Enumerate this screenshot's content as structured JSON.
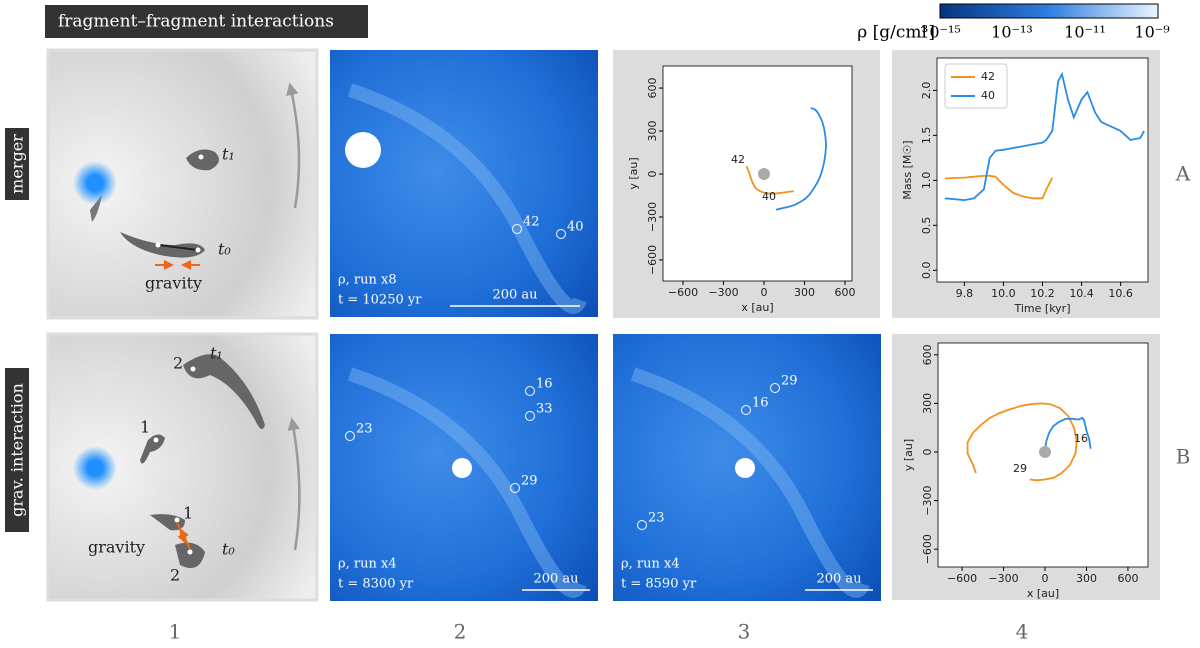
{
  "title": "fragment–fragment interactions",
  "colorbar": {
    "label": "ρ [g/cm³]",
    "ticks": [
      "10⁻¹⁵",
      "10⁻¹³",
      "10⁻¹¹",
      "10⁻⁹"
    ]
  },
  "rows": [
    "merger",
    "grav. interaction"
  ],
  "row_letters": [
    "A",
    "B"
  ],
  "columns": [
    "1",
    "2",
    "3",
    "4"
  ],
  "schematic": [
    {
      "t1": "t₁",
      "t0": "t₀",
      "force": "gravity"
    },
    {
      "t1": "t₁",
      "t0": "t₀",
      "force": "gravity",
      "labels": [
        "2",
        "1",
        "1",
        "2"
      ]
    }
  ],
  "simulations": [
    {
      "caption": "ρ, run x8",
      "time": "t = 10250 yr",
      "scale": "200 au",
      "fragments": [
        "42",
        "40"
      ]
    },
    {
      "caption": "ρ, run x4",
      "time": "t = 8300 yr",
      "scale": "200 au",
      "fragments": [
        "16",
        "33",
        "23",
        "29"
      ]
    },
    {
      "caption": "ρ, run x4",
      "time": "t = 8590 yr",
      "scale": "200 au",
      "fragments": [
        "29",
        "16",
        "23"
      ]
    }
  ],
  "chart_data": [
    {
      "type": "line",
      "xlabel": "x [au]",
      "ylabel": "y [au]",
      "xlim": [
        -748,
        652
      ],
      "ylim": [
        -747,
        754
      ],
      "xticks": [
        {
          "value": -600,
          "label": "−600"
        },
        {
          "value": -300,
          "label": "−300"
        },
        0,
        300,
        600
      ],
      "yticks": [
        {
          "value": -600,
          "label": "−600"
        },
        {
          "value": -300,
          "label": "−300"
        },
        0,
        300,
        600
      ],
      "star": {
        "x": 0,
        "y": 0,
        "color": "#aaaaaa"
      },
      "series": [
        {
          "name": "42",
          "color": "#f5901e",
          "x": [
            -130,
            -115,
            -100,
            -85,
            -65,
            -40,
            -10,
            20,
            60,
            100,
            140,
            180,
            220
          ],
          "values": [
            55,
            20,
            -20,
            -60,
            -95,
            -115,
            -128,
            -135,
            -138,
            -135,
            -130,
            -125,
            -120
          ]
        },
        {
          "name": "40",
          "color": "#2a8be8",
          "x": [
            90,
            130,
            180,
            230,
            270,
            310,
            340,
            370,
            395,
            415,
            430,
            445,
            455,
            460,
            455,
            445,
            430,
            410,
            390,
            370,
            345
          ],
          "values": [
            -250,
            -240,
            -230,
            -215,
            -195,
            -170,
            -140,
            -100,
            -60,
            -20,
            20,
            80,
            140,
            200,
            260,
            320,
            370,
            410,
            440,
            455,
            460
          ]
        }
      ]
    },
    {
      "type": "line",
      "xlabel": "Time [kyr]",
      "ylabel": "Mass [M☉]",
      "xlim": [
        9.66,
        10.74
      ],
      "ylim": [
        -0.13,
        2.36
      ],
      "xticks": [
        9.8,
        {
          "value": 10,
          "label": "10.0"
        },
        10.2,
        10.4,
        10.6
      ],
      "yticks": [
        {
          "value": 0,
          "label": "0.0"
        },
        0.5,
        {
          "value": 1,
          "label": "1.0"
        },
        1.5,
        {
          "value": 2,
          "label": "2.0"
        }
      ],
      "legend": "upper left",
      "x": [
        9.7,
        9.8,
        9.85,
        9.9,
        9.93,
        9.96,
        10.0,
        10.05,
        10.1,
        10.15,
        10.2,
        10.22,
        10.25,
        10.28,
        10.3,
        10.33,
        10.36,
        10.4,
        10.43,
        10.47,
        10.5,
        10.55,
        10.6,
        10.65,
        10.7,
        10.72
      ],
      "series": [
        {
          "name": "42",
          "color": "#f5901e",
          "values": [
            1.02,
            1.03,
            1.04,
            1.05,
            1.05,
            1.04,
            0.95,
            0.86,
            0.82,
            0.8,
            0.8,
            0.9,
            1.03,
            null,
            null,
            null,
            null,
            null,
            null,
            null,
            null,
            null,
            null,
            null,
            null,
            null
          ]
        },
        {
          "name": "40",
          "color": "#2a8be8",
          "values": [
            0.8,
            0.78,
            0.8,
            0.9,
            1.25,
            1.33,
            1.34,
            1.36,
            1.38,
            1.4,
            1.42,
            1.45,
            1.55,
            2.1,
            2.18,
            1.9,
            1.7,
            1.9,
            1.98,
            1.75,
            1.65,
            1.6,
            1.55,
            1.45,
            1.47,
            1.55
          ]
        }
      ]
    },
    {
      "type": "line",
      "xlabel": "x [au]",
      "ylabel": "y [au]",
      "xlim": [
        -774,
        745
      ],
      "ylim": [
        -710,
        673
      ],
      "xticks": [
        {
          "value": -600,
          "label": "−600"
        },
        {
          "value": -300,
          "label": "−300"
        },
        0,
        300,
        600
      ],
      "yticks": [
        {
          "value": -600,
          "label": "−600"
        },
        {
          "value": -300,
          "label": "−300"
        },
        0,
        300,
        600
      ],
      "star": {
        "x": 0,
        "y": 0,
        "color": "#aaaaaa"
      },
      "series": [
        {
          "name": "29",
          "color": "#f5901e",
          "x": [
            -500,
            -520,
            -560,
            -560,
            -520,
            -460,
            -400,
            -330,
            -250,
            -170,
            -100,
            -30,
            40,
            110,
            170,
            210,
            230,
            220,
            180,
            120,
            60,
            0,
            -60,
            -110
          ],
          "values": [
            -130,
            -80,
            -10,
            60,
            120,
            170,
            210,
            240,
            265,
            285,
            295,
            300,
            295,
            270,
            220,
            150,
            70,
            -10,
            -80,
            -130,
            -160,
            -170,
            -175,
            -170
          ]
        },
        {
          "name": "16",
          "color": "#2a8be8",
          "x": [
            330,
            320,
            300,
            290,
            280,
            270,
            240,
            200,
            150,
            100,
            60,
            30,
            10,
            0
          ],
          "values": [
            20,
            80,
            130,
            170,
            200,
            210,
            200,
            205,
            205,
            185,
            160,
            120,
            70,
            10
          ]
        }
      ]
    }
  ]
}
